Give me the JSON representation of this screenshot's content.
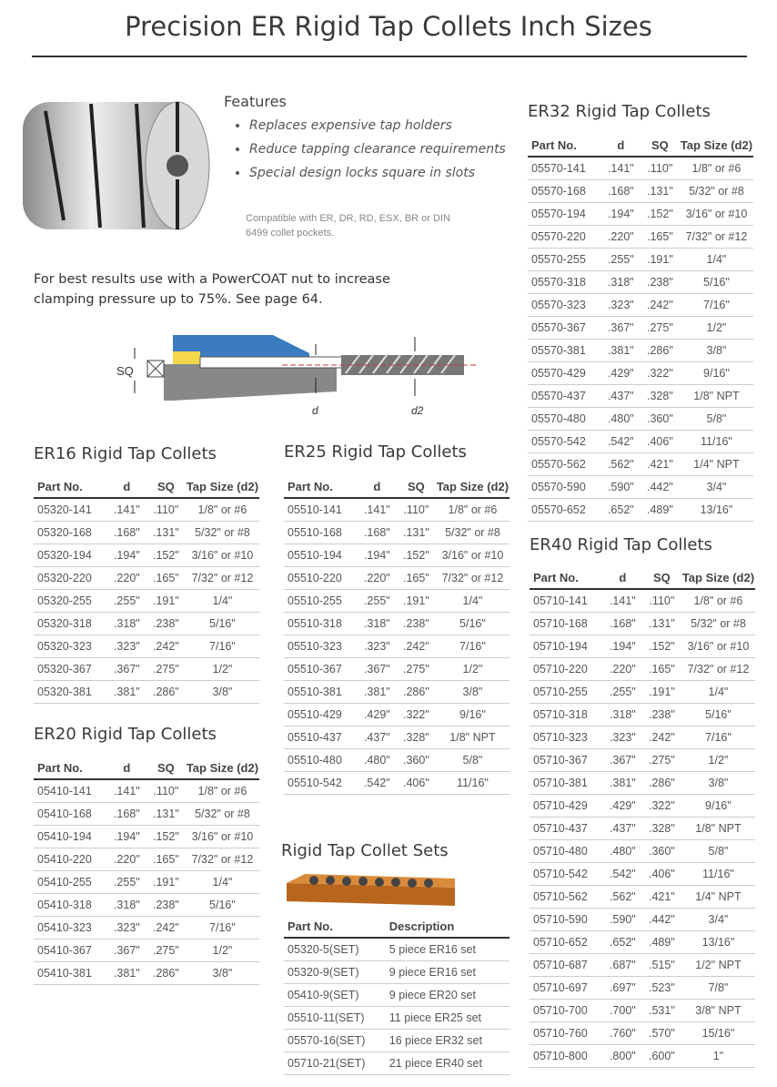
{
  "title": "Precision ER Rigid Tap Collets Inch Sizes",
  "features": {
    "heading": "Features",
    "items": [
      "Replaces expensive tap holders",
      "Reduce tapping clearance requirements",
      "Special design locks square in slots"
    ],
    "compat": "Compatible with ER, DR, RD, ESX, BR or DIN 6499 collet pockets."
  },
  "note": "For best results use with a PowerCOAT nut to increase clamping pressure up to 75%. See page 64.",
  "diagram": {
    "sq": "SQ",
    "d": "d",
    "d2": "d2"
  },
  "columns": [
    "Part No.",
    "d",
    "SQ",
    "Tap Size (d2)"
  ],
  "er16": {
    "title": "ER16 Rigid Tap Collets",
    "rows": [
      [
        "05320-141",
        ".141\"",
        ".110\"",
        "1/8\" or #6"
      ],
      [
        "05320-168",
        ".168\"",
        ".131\"",
        "5/32\" or #8"
      ],
      [
        "05320-194",
        ".194\"",
        ".152\"",
        "3/16\" or #10"
      ],
      [
        "05320-220",
        ".220\"",
        ".165\"",
        "7/32\" or #12"
      ],
      [
        "05320-255",
        ".255\"",
        ".191\"",
        "1/4\""
      ],
      [
        "05320-318",
        ".318\"",
        ".238\"",
        "5/16\""
      ],
      [
        "05320-323",
        ".323\"",
        ".242\"",
        "7/16\""
      ],
      [
        "05320-367",
        ".367\"",
        ".275\"",
        "1/2\""
      ],
      [
        "05320-381",
        ".381\"",
        ".286\"",
        "3/8\""
      ]
    ]
  },
  "er20": {
    "title": "ER20 Rigid Tap Collets",
    "rows": [
      [
        "05410-141",
        ".141\"",
        ".110\"",
        "1/8\" or #6"
      ],
      [
        "05410-168",
        ".168\"",
        ".131\"",
        "5/32\" or #8"
      ],
      [
        "05410-194",
        ".194\"",
        ".152\"",
        "3/16\" or #10"
      ],
      [
        "05410-220",
        ".220\"",
        ".165\"",
        "7/32\" or #12"
      ],
      [
        "05410-255",
        ".255\"",
        ".191\"",
        "1/4\""
      ],
      [
        "05410-318",
        ".318\"",
        ".238\"",
        "5/16\""
      ],
      [
        "05410-323",
        ".323\"",
        ".242\"",
        "7/16\""
      ],
      [
        "05410-367",
        ".367\"",
        ".275\"",
        "1/2\""
      ],
      [
        "05410-381",
        ".381\"",
        ".286\"",
        "3/8\""
      ]
    ]
  },
  "er25": {
    "title": "ER25  Rigid Tap Collets",
    "rows": [
      [
        "05510-141",
        ".141\"",
        ".110\"",
        "1/8\" or #6"
      ],
      [
        "05510-168",
        ".168\"",
        ".131\"",
        "5/32\" or #8"
      ],
      [
        "05510-194",
        ".194\"",
        ".152\"",
        "3/16\" or #10"
      ],
      [
        "05510-220",
        ".220\"",
        ".165\"",
        "7/32\" or #12"
      ],
      [
        "05510-255",
        ".255\"",
        ".191\"",
        "1/4\""
      ],
      [
        "05510-318",
        ".318\"",
        ".238\"",
        "5/16\""
      ],
      [
        "05510-323",
        ".323\"",
        ".242\"",
        "7/16\""
      ],
      [
        "05510-367",
        ".367\"",
        ".275\"",
        "1/2\""
      ],
      [
        "05510-381",
        ".381\"",
        ".286\"",
        "3/8\""
      ],
      [
        "05510-429",
        ".429\"",
        ".322\"",
        "9/16\""
      ],
      [
        "05510-437",
        ".437\"",
        ".328\"",
        "1/8\" NPT"
      ],
      [
        "05510-480",
        ".480\"",
        ".360\"",
        "5/8\""
      ],
      [
        "05510-542",
        ".542\"",
        ".406\"",
        "11/16\""
      ]
    ]
  },
  "er32": {
    "title": "ER32 Rigid Tap Collets",
    "rows": [
      [
        "05570-141",
        ".141\"",
        ".110\"",
        "1/8\" or #6"
      ],
      [
        "05570-168",
        ".168\"",
        ".131\"",
        "5/32\" or #8"
      ],
      [
        "05570-194",
        ".194\"",
        ".152\"",
        "3/16\" or #10"
      ],
      [
        "05570-220",
        ".220\"",
        ".165\"",
        "7/32\" or #12"
      ],
      [
        "05570-255",
        ".255\"",
        ".191\"",
        "1/4\""
      ],
      [
        "05570-318",
        ".318\"",
        ".238\"",
        "5/16\""
      ],
      [
        "05570-323",
        ".323\"",
        ".242\"",
        "7/16\""
      ],
      [
        "05570-367",
        ".367\"",
        ".275\"",
        "1/2\""
      ],
      [
        "05570-381",
        ".381\"",
        ".286\"",
        "3/8\""
      ],
      [
        "05570-429",
        ".429\"",
        ".322\"",
        "9/16\""
      ],
      [
        "05570-437",
        ".437\"",
        ".328\"",
        "1/8\" NPT"
      ],
      [
        "05570-480",
        ".480\"",
        ".360\"",
        "5/8\""
      ],
      [
        "05570-542",
        ".542\"",
        ".406\"",
        "11/16\""
      ],
      [
        "05570-562",
        ".562\"",
        ".421\"",
        "1/4\" NPT"
      ],
      [
        "05570-590",
        ".590\"",
        ".442\"",
        "3/4\""
      ],
      [
        "05570-652",
        ".652\"",
        ".489\"",
        "13/16\""
      ]
    ]
  },
  "er40": {
    "title": "ER40 Rigid Tap Collets",
    "rows": [
      [
        "05710-141",
        ".141\"",
        ".110\"",
        "1/8\" or #6"
      ],
      [
        "05710-168",
        ".168\"",
        ".131\"",
        "5/32\" or #8"
      ],
      [
        "05710-194",
        ".194\"",
        ".152\"",
        "3/16\" or #10"
      ],
      [
        "05710-220",
        ".220\"",
        ".165\"",
        "7/32\" or #12"
      ],
      [
        "05710-255",
        ".255\"",
        ".191\"",
        "1/4\""
      ],
      [
        "05710-318",
        ".318\"",
        ".238\"",
        "5/16\""
      ],
      [
        "05710-323",
        ".323\"",
        ".242\"",
        "7/16\""
      ],
      [
        "05710-367",
        ".367\"",
        ".275\"",
        "1/2\""
      ],
      [
        "05710-381",
        ".381\"",
        ".286\"",
        "3/8\""
      ],
      [
        "05710-429",
        ".429\"",
        ".322\"",
        "9/16\""
      ],
      [
        "05710-437",
        ".437\"",
        ".328\"",
        "1/8\" NPT"
      ],
      [
        "05710-480",
        ".480\"",
        ".360\"",
        "5/8\""
      ],
      [
        "05710-542",
        ".542\"",
        ".406\"",
        "11/16\""
      ],
      [
        "05710-562",
        ".562\"",
        ".421\"",
        "1/4\" NPT"
      ],
      [
        "05710-590",
        ".590\"",
        ".442\"",
        "3/4\""
      ],
      [
        "05710-652",
        ".652\"",
        ".489\"",
        "13/16\""
      ],
      [
        "05710-687",
        ".687\"",
        ".515\"",
        "1/2\" NPT"
      ],
      [
        "05710-697",
        ".697\"",
        ".523\"",
        "7/8\""
      ],
      [
        "05710-700",
        ".700\"",
        ".531\"",
        "3/8\" NPT"
      ],
      [
        "05710-760",
        ".760\"",
        ".570\"",
        "15/16\""
      ],
      [
        "05710-800",
        ".800\"",
        ".600\"",
        "1\""
      ]
    ]
  },
  "sets": {
    "title": "Rigid Tap Collet Sets",
    "columns": [
      "Part No.",
      "Description"
    ],
    "rows": [
      [
        "05320-5(SET)",
        "5 piece ER16 set"
      ],
      [
        "05320-9(SET)",
        "9 piece ER16 set"
      ],
      [
        "05410-9(SET)",
        "9 piece ER20 set"
      ],
      [
        "05510-11(SET)",
        "11 piece ER25 set"
      ],
      [
        "05570-16(SET)",
        "16 piece ER32 set"
      ],
      [
        "05710-21(SET)",
        "21 piece ER40 set"
      ]
    ]
  }
}
